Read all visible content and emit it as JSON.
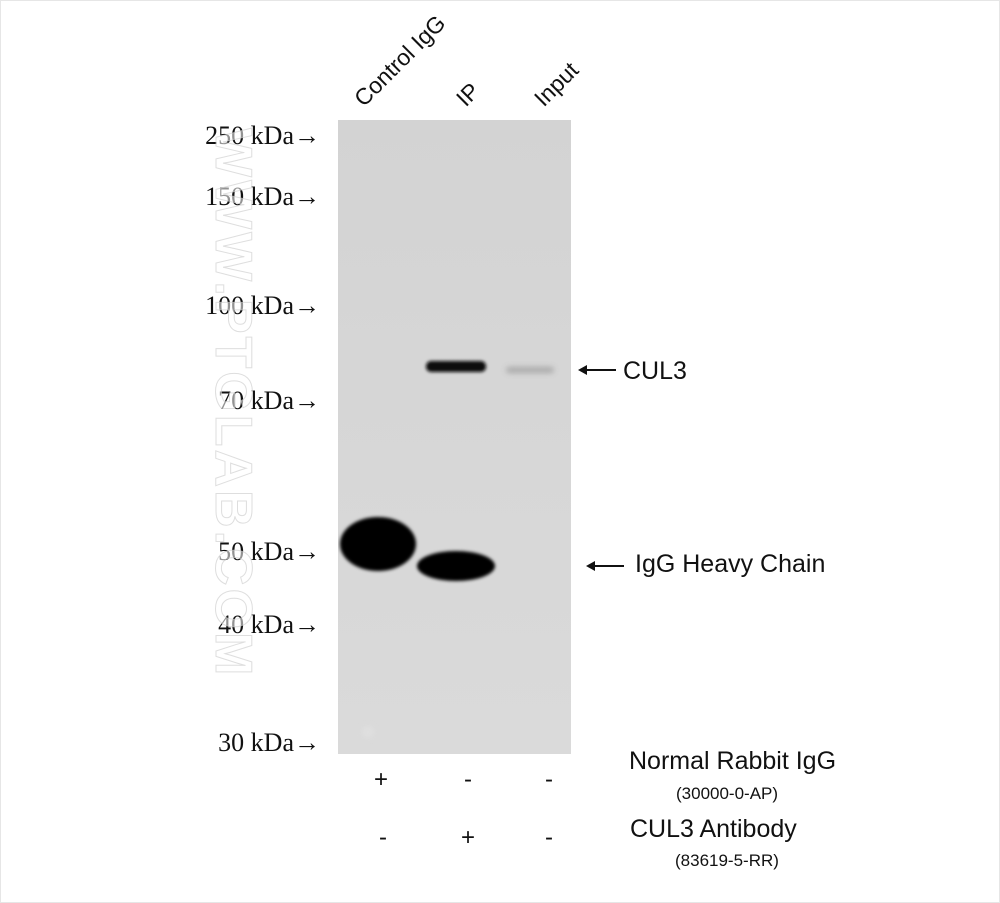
{
  "lanes": [
    {
      "label": "Control IgG"
    },
    {
      "label": "IP"
    },
    {
      "label": "Input"
    }
  ],
  "markers": [
    {
      "label": "250 kDa→"
    },
    {
      "label": "150 kDa→"
    },
    {
      "label": "100 kDa→"
    },
    {
      "label": "70 kDa→"
    },
    {
      "label": "50 kDa→"
    },
    {
      "label": "40 kDa→"
    },
    {
      "label": "30 kDa→"
    }
  ],
  "watermark": "WWW.PTGLAB.COM",
  "bands": {
    "cul3": "CUL3",
    "heavy_chain": "IgG Heavy Chain"
  },
  "reagents": [
    {
      "name": "Normal Rabbit IgG",
      "catalog": "(30000-0-AP)",
      "signs": [
        "+",
        "-",
        "-"
      ]
    },
    {
      "name": "CUL3 Antibody",
      "catalog": "(83619-5-RR)",
      "signs": [
        "-",
        "+",
        "-"
      ]
    }
  ],
  "colors": {
    "membrane": "#d6d6d6",
    "band": "#0a0a0a"
  }
}
